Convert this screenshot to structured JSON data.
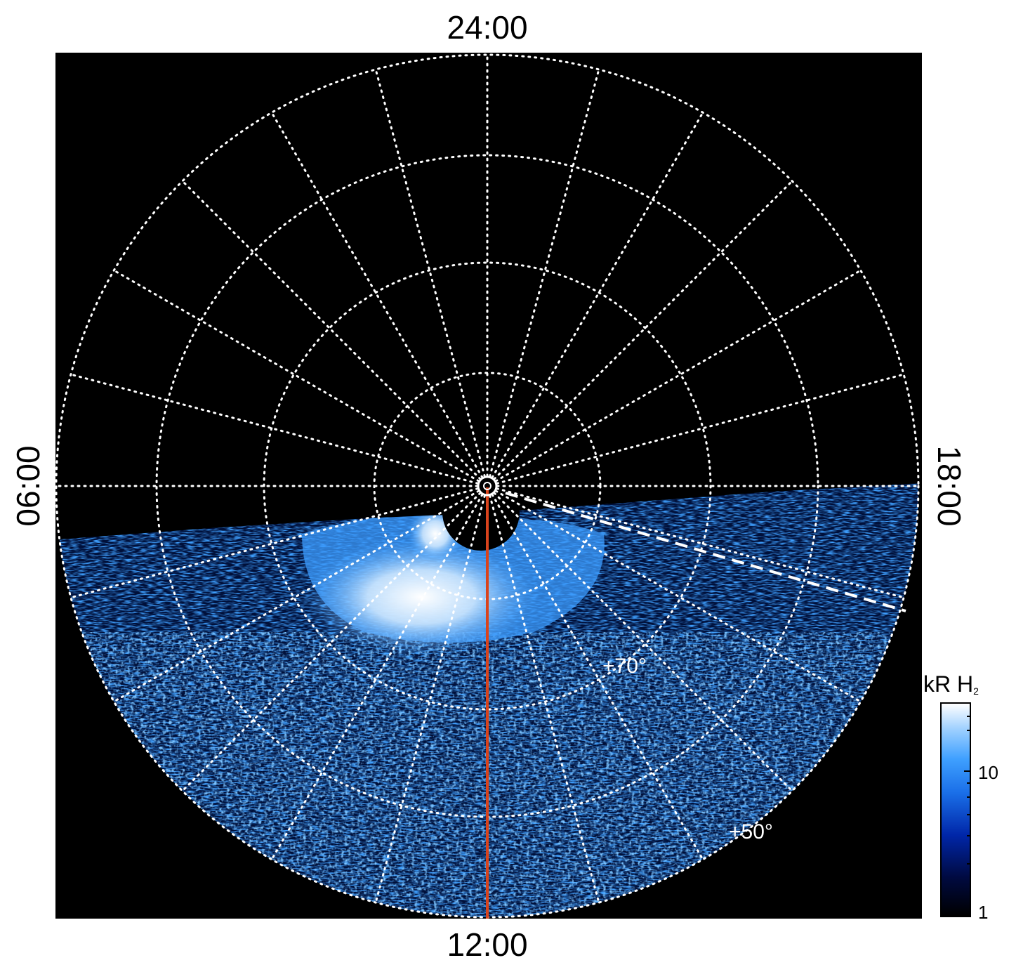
{
  "local_time_labels": {
    "top": "24:00",
    "bottom": "12:00",
    "left": "06:00",
    "right": "18:00"
  },
  "latitude_labels": {
    "inner": "+70°",
    "outer": "+50°"
  },
  "colorbar": {
    "title_main": "kR H",
    "title_sub": "2",
    "tick_labels": [
      "10",
      "1"
    ],
    "scale": "log"
  },
  "colors": {
    "background": "#000000",
    "grid": "#ffffff",
    "meridian_line": "#d9431c",
    "emission_low": "#000a40",
    "emission_mid": "#1a6fe8",
    "emission_high": "#ffffff"
  }
}
